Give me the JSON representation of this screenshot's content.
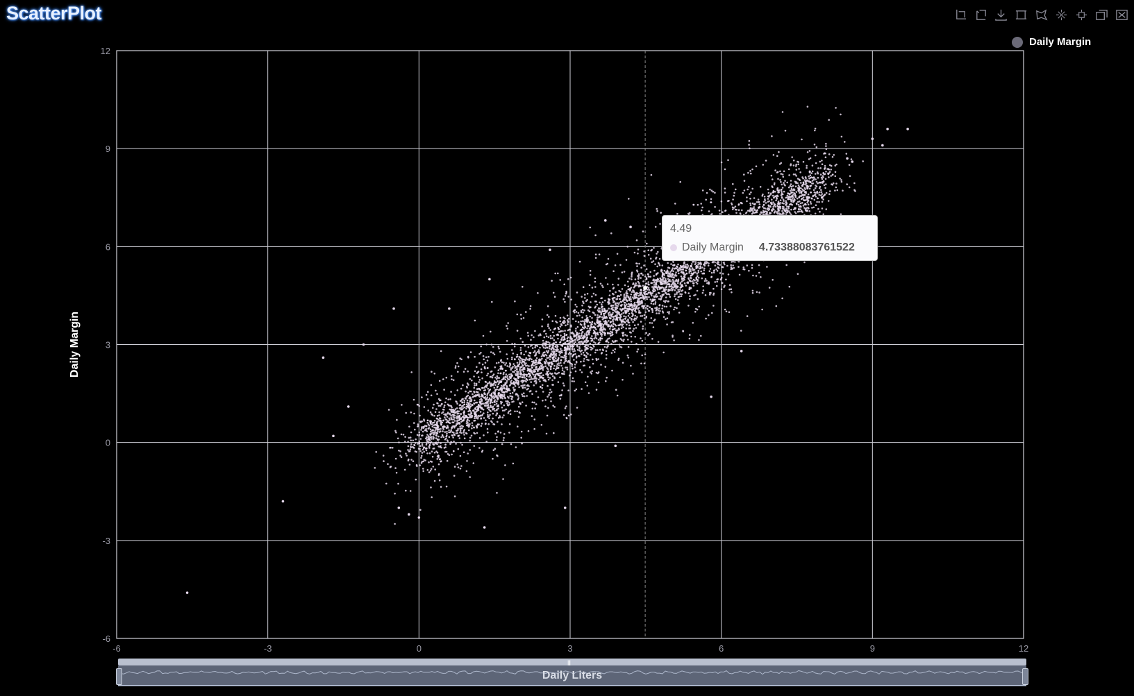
{
  "title": "ScatterPlot",
  "toolbox": [
    "zoom-icon",
    "zoom-reset-icon",
    "download-icon",
    "rect-select-icon",
    "lasso-select-icon",
    "keep-select-icon",
    "clear-select-icon",
    "restore-icon",
    "close-icon"
  ],
  "legend": {
    "label": "Daily Margin",
    "color": "#6b6a78"
  },
  "tooltip": {
    "x": "4.49",
    "series": "Daily Margin",
    "value": "4.73388083761522"
  },
  "zoom_slider": {
    "label": "Daily Liters",
    "start": 0,
    "end": 100
  },
  "colors": {
    "point": "#e6d9ec",
    "grid": "#d0d0d8",
    "axis_text": "#9a9aa6"
  },
  "chart_data": {
    "type": "scatter",
    "title": "ScatterPlot",
    "xlabel": "Daily Liters",
    "ylabel": "Daily Margin",
    "xlim": [
      -6,
      12
    ],
    "ylim": [
      -6,
      12
    ],
    "xticks": [
      -6,
      -3,
      0,
      3,
      6,
      9,
      12
    ],
    "yticks": [
      -6,
      -3,
      0,
      3,
      6,
      9,
      12
    ],
    "grid": true,
    "legend_position": "top-right",
    "series": [
      {
        "name": "Daily Margin",
        "core_points": [
          [
            0.2,
            0.1
          ],
          [
            0.8,
            0.8
          ],
          [
            1.5,
            1.5
          ],
          [
            2.2,
            2.2
          ],
          [
            2.9,
            2.9
          ],
          [
            3.6,
            3.6
          ],
          [
            4.2,
            4.2
          ],
          [
            4.8,
            4.9
          ],
          [
            5.4,
            5.4
          ],
          [
            -4.6,
            -4.6
          ],
          [
            -2.7,
            -1.8
          ],
          [
            -1.9,
            2.6
          ],
          [
            -1.7,
            0.2
          ],
          [
            -1.4,
            1.1
          ],
          [
            -1.1,
            3.0
          ],
          [
            -0.5,
            4.1
          ],
          [
            -0.4,
            -2.0
          ],
          [
            1.3,
            -2.6
          ],
          [
            9.3,
            9.6
          ],
          [
            9.7,
            9.6
          ],
          [
            9.0,
            9.3
          ],
          [
            9.2,
            9.1
          ],
          [
            8.6,
            8.6
          ],
          [
            8.5,
            8.7
          ],
          [
            7.7,
            7.1
          ],
          [
            8.0,
            7.5
          ],
          [
            6.4,
            2.8
          ],
          [
            5.8,
            1.4
          ],
          [
            3.9,
            -0.1
          ],
          [
            -0.2,
            -2.2
          ],
          [
            0.0,
            -2.3
          ],
          [
            2.9,
            -2.0
          ],
          [
            7.3,
            6.4
          ],
          [
            6.9,
            7.0
          ],
          [
            6.6,
            6.7
          ],
          [
            4.2,
            6.6
          ],
          [
            3.7,
            6.8
          ],
          [
            2.6,
            5.9
          ],
          [
            1.4,
            5.0
          ],
          [
            0.6,
            4.1
          ]
        ],
        "trend": {
          "slope": 1.0,
          "intercept": 0.0,
          "x_range": [
            0,
            8
          ]
        }
      }
    ],
    "crosshair_x": 4.49,
    "highlighted_point": {
      "x": 4.49,
      "y": 4.73388083761522
    }
  }
}
